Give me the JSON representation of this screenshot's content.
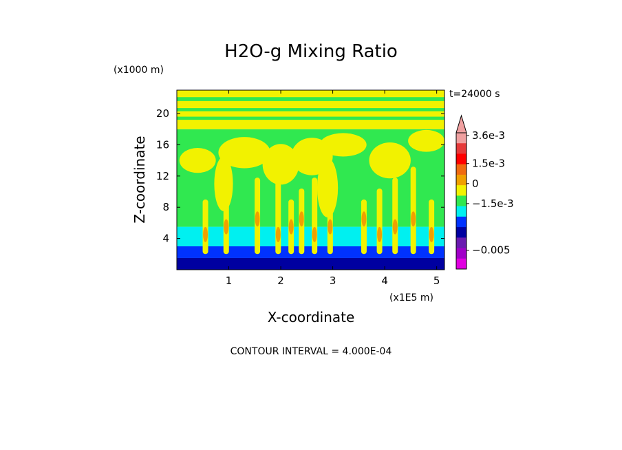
{
  "chart_data": {
    "type": "heatmap",
    "title": "H2O-g Mixing Ratio",
    "xlabel": "X-coordinate",
    "ylabel": "Z-coordinate",
    "x_unit": "(x1E5 m)",
    "y_unit": "(x1000 m)",
    "time_label": "t=24000 s",
    "contour_interval": "CONTOUR INTERVAL = 4.000E-04",
    "xlim": [
      0,
      5.15
    ],
    "ylim": [
      0,
      23
    ],
    "x_ticks": [
      1,
      2,
      3,
      4,
      5
    ],
    "x_tick_labels": [
      "1",
      "2",
      "3",
      "4",
      "5"
    ],
    "y_ticks": [
      4,
      8,
      12,
      16,
      20
    ],
    "y_tick_labels": [
      "4",
      "8",
      "12",
      "16",
      "20"
    ],
    "colorbar": {
      "labels": [
        {
          "text": "3.6e-3",
          "value": 0.0036
        },
        {
          "text": "1.5e-3",
          "value": 0.0015
        },
        {
          "text": "0",
          "value": 0
        },
        {
          "text": "−1.5e-3",
          "value": -0.0015
        },
        {
          "text": "−0.005",
          "value": -0.005
        }
      ],
      "levels_top_to_bottom": [
        {
          "color": "#f0a0a0"
        },
        {
          "color": "#e63a3a"
        },
        {
          "color": "#ff0000"
        },
        {
          "color": "#f06a10"
        },
        {
          "color": "#f0a000"
        },
        {
          "color": "#f2f200"
        },
        {
          "color": "#30e850"
        },
        {
          "color": "#00f0f0"
        },
        {
          "color": "#0032ff"
        },
        {
          "color": "#0000a0"
        },
        {
          "color": "#6a1ab0"
        },
        {
          "color": "#a000c8"
        },
        {
          "color": "#e000e0"
        }
      ]
    },
    "field_summary": {
      "layers": [
        {
          "z_range": [
            0,
            1.5
          ],
          "dominant_color": "#0000a0",
          "description_values": "-1.5e-3 and below"
        },
        {
          "z_range": [
            1.5,
            3.0
          ],
          "dominant_color": "#0032ff"
        },
        {
          "z_range": [
            3.0,
            5.5
          ],
          "dominant_color": "#00f0f0"
        },
        {
          "z_range": [
            5.5,
            18
          ],
          "dominant_color": "#30e850"
        },
        {
          "z_range": [
            18,
            23
          ],
          "dominant_color": "#f2f200"
        }
      ],
      "plumes_x": [
        0.55,
        0.95,
        1.55,
        1.95,
        2.2,
        2.4,
        2.65,
        2.95,
        3.6,
        3.9,
        4.2,
        4.55,
        4.9
      ]
    }
  }
}
